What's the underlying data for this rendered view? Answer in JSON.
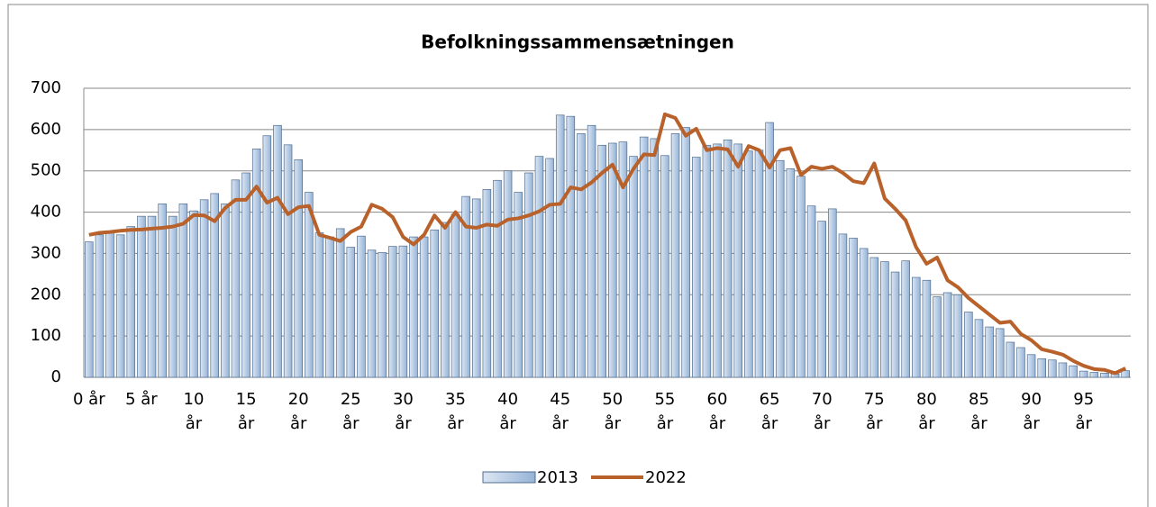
{
  "chart_data": {
    "type": "bar_line",
    "title": "Befolkningssammensætningen",
    "categories": [
      "0 år",
      null,
      null,
      null,
      null,
      "5 år",
      null,
      null,
      null,
      null,
      "10 år",
      null,
      null,
      null,
      null,
      "15 år",
      null,
      null,
      null,
      null,
      "20 år",
      null,
      null,
      null,
      null,
      "25 år",
      null,
      null,
      null,
      null,
      "30 år",
      null,
      null,
      null,
      null,
      "35 år",
      null,
      null,
      null,
      null,
      "40 år",
      null,
      null,
      null,
      null,
      "45 år",
      null,
      null,
      null,
      null,
      "50 år",
      null,
      null,
      null,
      null,
      "55 år",
      null,
      null,
      null,
      null,
      "60 år",
      null,
      null,
      null,
      null,
      "65 år",
      null,
      null,
      null,
      null,
      "70 år",
      null,
      null,
      null,
      null,
      "75 år",
      null,
      null,
      null,
      null,
      "80 år",
      null,
      null,
      null,
      null,
      "85 år",
      null,
      null,
      null,
      null,
      "90 år",
      null,
      null,
      null,
      null,
      "95 år",
      null,
      null,
      null,
      null
    ],
    "series": [
      {
        "name": "2013",
        "type": "bar",
        "color": "#b9cde5",
        "stroke": "#4f6d8f",
        "values": [
          328,
          345,
          350,
          345,
          365,
          390,
          390,
          420,
          390,
          420,
          403,
          430,
          445,
          420,
          478,
          495,
          553,
          585,
          610,
          563,
          527,
          448,
          350,
          340,
          360,
          315,
          342,
          308,
          302,
          317,
          318,
          340,
          340,
          357,
          375,
          395,
          438,
          432,
          455,
          477,
          500,
          448,
          495,
          535,
          530,
          635,
          632,
          590,
          610,
          562,
          567,
          570,
          535,
          582,
          578,
          537,
          590,
          605,
          533,
          562,
          565,
          575,
          565,
          548,
          550,
          617,
          525,
          505,
          487,
          415,
          378,
          408,
          347,
          337,
          312,
          290,
          280,
          255,
          282,
          242,
          235,
          195,
          205,
          200,
          158,
          140,
          122,
          118,
          85,
          72,
          55,
          45,
          42,
          35,
          28,
          15,
          12,
          10,
          8,
          16
        ]
      },
      {
        "name": "2022",
        "type": "line",
        "color": "#b8612a",
        "values": [
          345,
          350,
          352,
          355,
          357,
          358,
          360,
          362,
          365,
          372,
          393,
          392,
          378,
          410,
          430,
          430,
          462,
          423,
          435,
          395,
          412,
          415,
          345,
          338,
          330,
          352,
          365,
          418,
          408,
          388,
          340,
          322,
          345,
          392,
          362,
          400,
          365,
          362,
          370,
          367,
          382,
          385,
          392,
          402,
          418,
          420,
          460,
          455,
          472,
          495,
          515,
          460,
          505,
          540,
          538,
          637,
          628,
          585,
          602,
          550,
          555,
          552,
          510,
          560,
          550,
          508,
          550,
          555,
          490,
          510,
          505,
          510,
          495,
          475,
          470,
          518,
          433,
          408,
          380,
          315,
          275,
          290,
          235,
          218,
          192,
          172,
          152,
          132,
          135,
          105,
          90,
          68,
          62,
          55,
          40,
          28,
          20,
          18,
          10,
          22
        ]
      }
    ],
    "ylim": [
      0,
      700
    ],
    "yticks": [
      0,
      100,
      200,
      300,
      400,
      500,
      600,
      700
    ],
    "grid": true,
    "legend": "bottom"
  }
}
